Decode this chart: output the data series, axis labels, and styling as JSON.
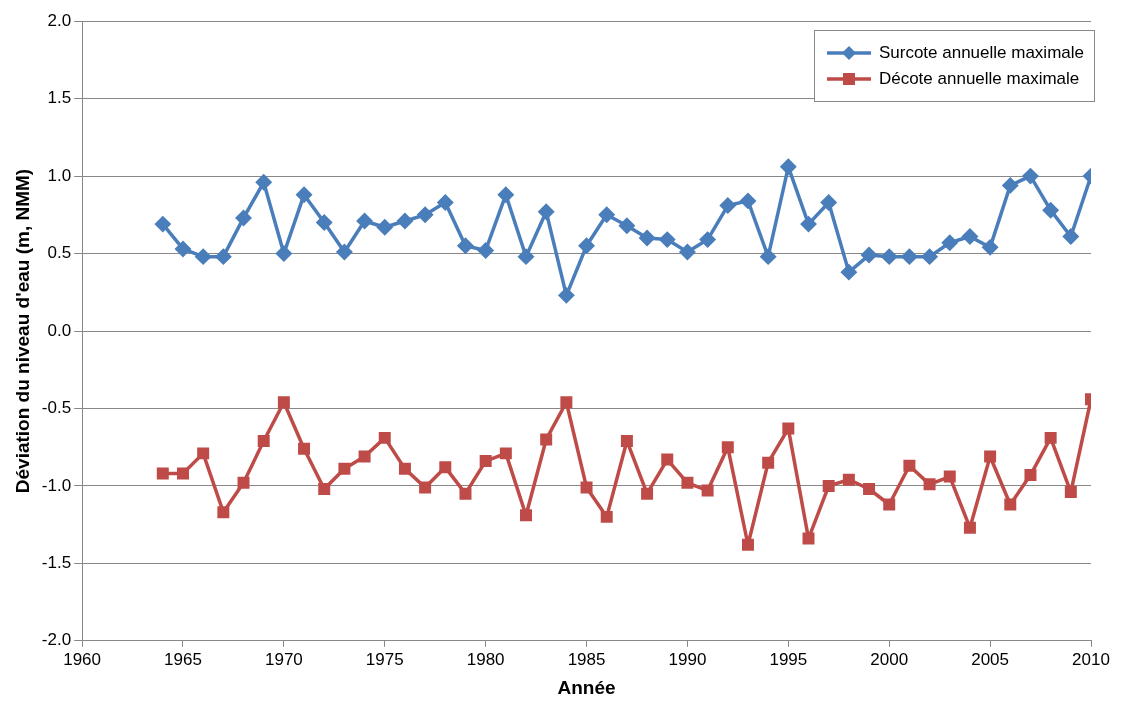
{
  "chart_data": {
    "type": "line",
    "xlabel": "Année",
    "ylabel": "Déviation du niveau d'eau (m, NMM)",
    "x": [
      1964,
      1965,
      1966,
      1967,
      1968,
      1969,
      1970,
      1971,
      1972,
      1973,
      1974,
      1975,
      1976,
      1977,
      1978,
      1979,
      1980,
      1981,
      1982,
      1983,
      1984,
      1985,
      1986,
      1987,
      1988,
      1989,
      1990,
      1991,
      1992,
      1993,
      1994,
      1995,
      1996,
      1997,
      1998,
      1999,
      2000,
      2001,
      2002,
      2003,
      2004,
      2005,
      2006,
      2007,
      2008,
      2009,
      2010
    ],
    "series": [
      {
        "name": "Surcote annuelle maximale",
        "color": "#4a7ebb",
        "marker": "diamond",
        "values": [
          0.69,
          0.53,
          0.48,
          0.48,
          0.73,
          0.96,
          0.5,
          0.88,
          0.7,
          0.51,
          0.71,
          0.67,
          0.71,
          0.75,
          0.83,
          0.55,
          0.52,
          0.88,
          0.48,
          0.77,
          0.23,
          0.55,
          0.75,
          0.68,
          0.6,
          0.59,
          0.51,
          0.59,
          0.81,
          0.84,
          0.48,
          1.06,
          0.69,
          0.83,
          0.38,
          0.49,
          0.48,
          0.48,
          0.48,
          0.57,
          0.61,
          0.54,
          0.94,
          1.0,
          0.78,
          0.61,
          1.0
        ]
      },
      {
        "name": "Décote annuelle maximale",
        "color": "#be4b48",
        "marker": "square",
        "values": [
          -0.92,
          -0.92,
          -0.79,
          -1.17,
          -0.98,
          -0.71,
          -0.46,
          -0.76,
          -1.02,
          -0.89,
          -0.81,
          -0.69,
          -0.89,
          -1.01,
          -0.88,
          -1.05,
          -0.84,
          -0.79,
          -1.19,
          -0.7,
          -0.46,
          -1.01,
          -1.2,
          -0.71,
          -1.05,
          -0.83,
          -0.98,
          -1.03,
          -0.75,
          -1.38,
          -0.85,
          -0.63,
          -1.34,
          -1.0,
          -0.96,
          -1.02,
          -1.12,
          -0.87,
          -0.99,
          -0.94,
          -1.27,
          -0.81,
          -1.12,
          -0.93,
          -0.69,
          -1.04,
          -0.44
        ]
      }
    ],
    "xlim": [
      1960,
      2010
    ],
    "xticks": [
      1960,
      1965,
      1970,
      1975,
      1980,
      1985,
      1990,
      1995,
      2000,
      2005,
      2010
    ],
    "ylim": [
      -2.0,
      2.0
    ],
    "yticks": [
      {
        "value": -2,
        "label": "-2.0"
      },
      {
        "value": -1.5,
        "label": "-1.5"
      },
      {
        "value": -1,
        "label": "-1.0"
      },
      {
        "value": -0.5,
        "label": "-0.5"
      },
      {
        "value": 0,
        "label": "0.0"
      },
      {
        "value": 0.5,
        "label": "0.5"
      },
      {
        "value": 1,
        "label": "1.0"
      },
      {
        "value": 1.5,
        "label": "1.5"
      },
      {
        "value": 2,
        "label": "2.0"
      }
    ],
    "grid": "y",
    "legend": "top right",
    "line_style": "solid"
  }
}
